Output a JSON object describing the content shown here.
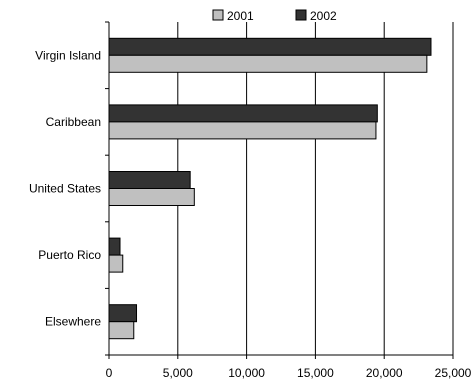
{
  "chart_data": {
    "type": "bar",
    "orientation": "horizontal",
    "title": "",
    "xlabel": "",
    "ylabel": "",
    "categories": [
      "Virgin Island",
      "Caribbean",
      "United States",
      "Puerto Rico",
      "Elsewhere"
    ],
    "series": [
      {
        "name": "2001",
        "values": [
          23100,
          19400,
          6200,
          1000,
          1800
        ],
        "color": "#c0c0c0"
      },
      {
        "name": "2002",
        "values": [
          23400,
          19500,
          5900,
          800,
          2000
        ],
        "color": "#333333"
      }
    ],
    "xlim": [
      0,
      25000
    ],
    "x_ticks": [
      "0",
      "5,000",
      "10,000",
      "15,000",
      "20,000",
      "25,000"
    ],
    "x_tick_values": [
      0,
      5000,
      10000,
      15000,
      20000,
      25000
    ],
    "grid": "vertical",
    "legend": "top"
  }
}
